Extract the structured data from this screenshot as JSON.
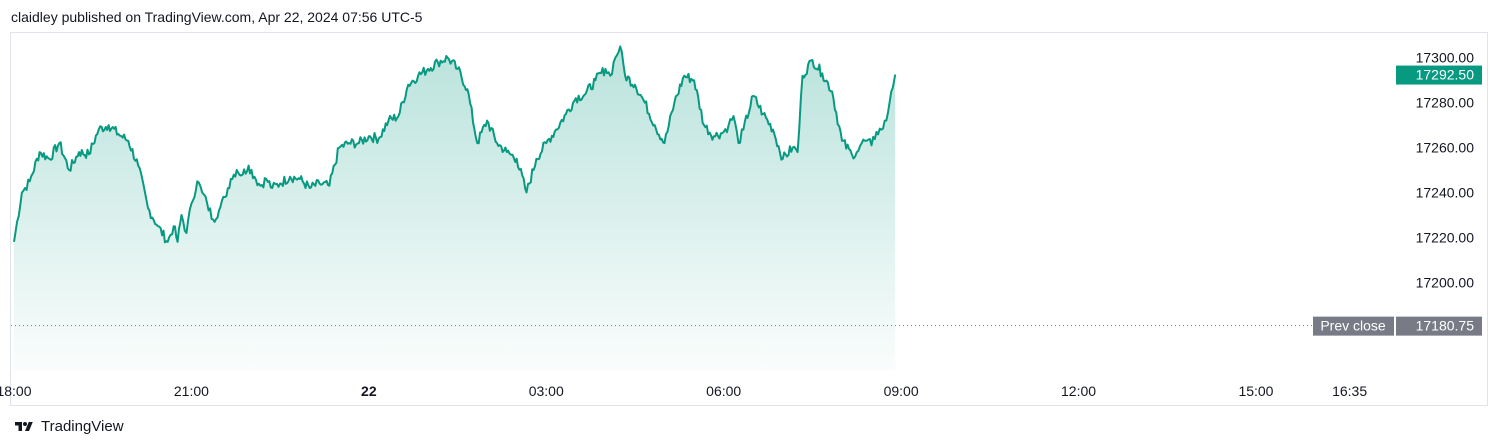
{
  "header": {
    "text": "claidley published on TradingView.com, Apr 22, 2024 07:56 UTC-5"
  },
  "footer": {
    "logo_icon": "tradingview-logo-icon",
    "brand": "TradingView"
  },
  "price_label": {
    "value": "17292.50",
    "color": "#089981"
  },
  "prev_close": {
    "label": "Prev close",
    "value": "17180.75",
    "color": "#787b86"
  },
  "colors": {
    "line": "#089981",
    "area_top": "#089981",
    "area_bottom": "#ffffff"
  },
  "chart_data": {
    "type": "area",
    "title": "",
    "xlabel": "",
    "ylabel": "",
    "ylim": [
      17161,
      17311
    ],
    "y_ticks": [
      "17300.00",
      "17280.00",
      "17260.00",
      "17240.00",
      "17220.00",
      "17200.00"
    ],
    "x_ticks": [
      {
        "label": "18:00",
        "t": 0,
        "bold": false
      },
      {
        "label": "21:00",
        "t": 180,
        "bold": false
      },
      {
        "label": "22",
        "t": 360,
        "bold": true
      },
      {
        "label": "03:00",
        "t": 540,
        "bold": false
      },
      {
        "label": "06:00",
        "t": 720,
        "bold": false
      },
      {
        "label": "09:00",
        "t": 900,
        "bold": false
      },
      {
        "label": "12:00",
        "t": 1080,
        "bold": false
      },
      {
        "label": "15:00",
        "t": 1260,
        "bold": false
      },
      {
        "label": "16:35",
        "t": 1355,
        "bold": false
      }
    ],
    "x_range_minutes": [
      -2,
      1398
    ],
    "prev_close": 17180.75,
    "last_price": 17292.5,
    "grid": false,
    "series": [
      {
        "x": [
          0,
          8,
          16,
          26,
          36,
          46,
          56,
          66,
          76,
          86,
          96,
          106,
          116,
          126,
          136,
          146,
          156,
          162,
          166,
          170,
          175,
          180,
          186,
          191,
          196,
          202,
          208,
          214,
          220,
          226,
          232,
          238,
          244,
          250,
          256,
          262,
          270,
          280,
          290,
          300,
          310,
          320,
          330,
          340,
          350,
          360,
          370,
          380,
          390,
          400,
          410,
          420,
          430,
          440,
          450,
          460,
          470,
          480,
          490,
          500,
          510,
          520,
          530,
          540,
          550,
          560,
          570,
          580,
          590,
          600,
          605,
          610,
          615,
          620,
          630,
          640,
          650,
          660,
          670,
          680,
          690,
          700,
          710,
          720,
          725,
          730,
          735,
          740,
          750,
          760,
          770,
          780,
          790,
          795,
          800,
          810,
          820,
          830,
          840,
          850,
          855,
          860,
          865,
          870,
          875,
          880,
          885,
          890,
          894
        ],
        "values": [
          17218,
          17240,
          17245,
          17258,
          17255,
          17262,
          17250,
          17258,
          17257,
          17268,
          17270,
          17266,
          17263,
          17252,
          17233,
          17225,
          17218,
          17225,
          17218,
          17230,
          17222,
          17235,
          17245,
          17240,
          17235,
          17228,
          17232,
          17238,
          17246,
          17250,
          17248,
          17252,
          17247,
          17243,
          17246,
          17242,
          17244,
          17247,
          17246,
          17242,
          17244,
          17243,
          17260,
          17262,
          17262,
          17265,
          17264,
          17272,
          17274,
          17288,
          17292,
          17295,
          17298,
          17300,
          17295,
          17286,
          17262,
          17272,
          17262,
          17258,
          17255,
          17240,
          17255,
          17262,
          17268,
          17275,
          17282,
          17284,
          17290,
          17295,
          17292,
          17300,
          17305,
          17292,
          17288,
          17280,
          17270,
          17262,
          17280,
          17292,
          17290,
          17270,
          17265,
          17267,
          17270,
          17274,
          17262,
          17268,
          17283,
          17275,
          17268,
          17255,
          17260,
          17258,
          17292,
          17299,
          17293,
          17285,
          17263,
          17257,
          17258,
          17262,
          17263,
          17261,
          17267,
          17268,
          17272,
          17285,
          17292.5
        ]
      }
    ]
  }
}
